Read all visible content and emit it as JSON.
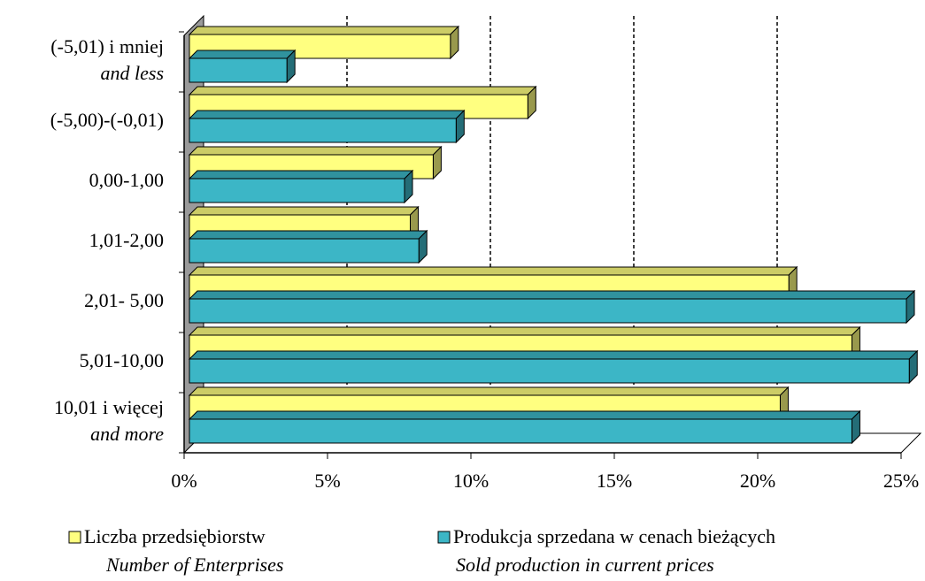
{
  "chart_data": {
    "type": "bar",
    "orientation": "horizontal",
    "categories": [
      [
        "(-5,01) i mniej",
        "and less"
      ],
      [
        "(-5,00)-(-0,01)"
      ],
      [
        "0,00-1,00"
      ],
      [
        "1,01-2,00"
      ],
      [
        "2,01- 5,00"
      ],
      [
        "5,01-10,00"
      ],
      [
        "10,01 i więcej",
        "and more"
      ]
    ],
    "series": [
      {
        "name": "Liczba przedsiębiorstw",
        "name_en": "Number of Enterprises",
        "color": "#ffff80",
        "values": [
          9.1,
          11.8,
          8.5,
          7.7,
          20.9,
          23.1,
          20.6
        ]
      },
      {
        "name": "Produkcja sprzedana w cenach bieżących",
        "name_en": "Sold production in current prices",
        "color": "#3cb6c6",
        "values": [
          3.4,
          9.3,
          7.5,
          8.0,
          25.0,
          25.1,
          23.1
        ]
      }
    ],
    "xlim": [
      0,
      25
    ],
    "xticks": [
      {
        "value": 0,
        "label": "0%"
      },
      {
        "value": 5,
        "label": "5%"
      },
      {
        "value": 10,
        "label": "10%"
      },
      {
        "value": 15,
        "label": "15%"
      },
      {
        "value": 20,
        "label": "20%"
      },
      {
        "value": 25,
        "label": "25%"
      }
    ],
    "grid": true
  }
}
